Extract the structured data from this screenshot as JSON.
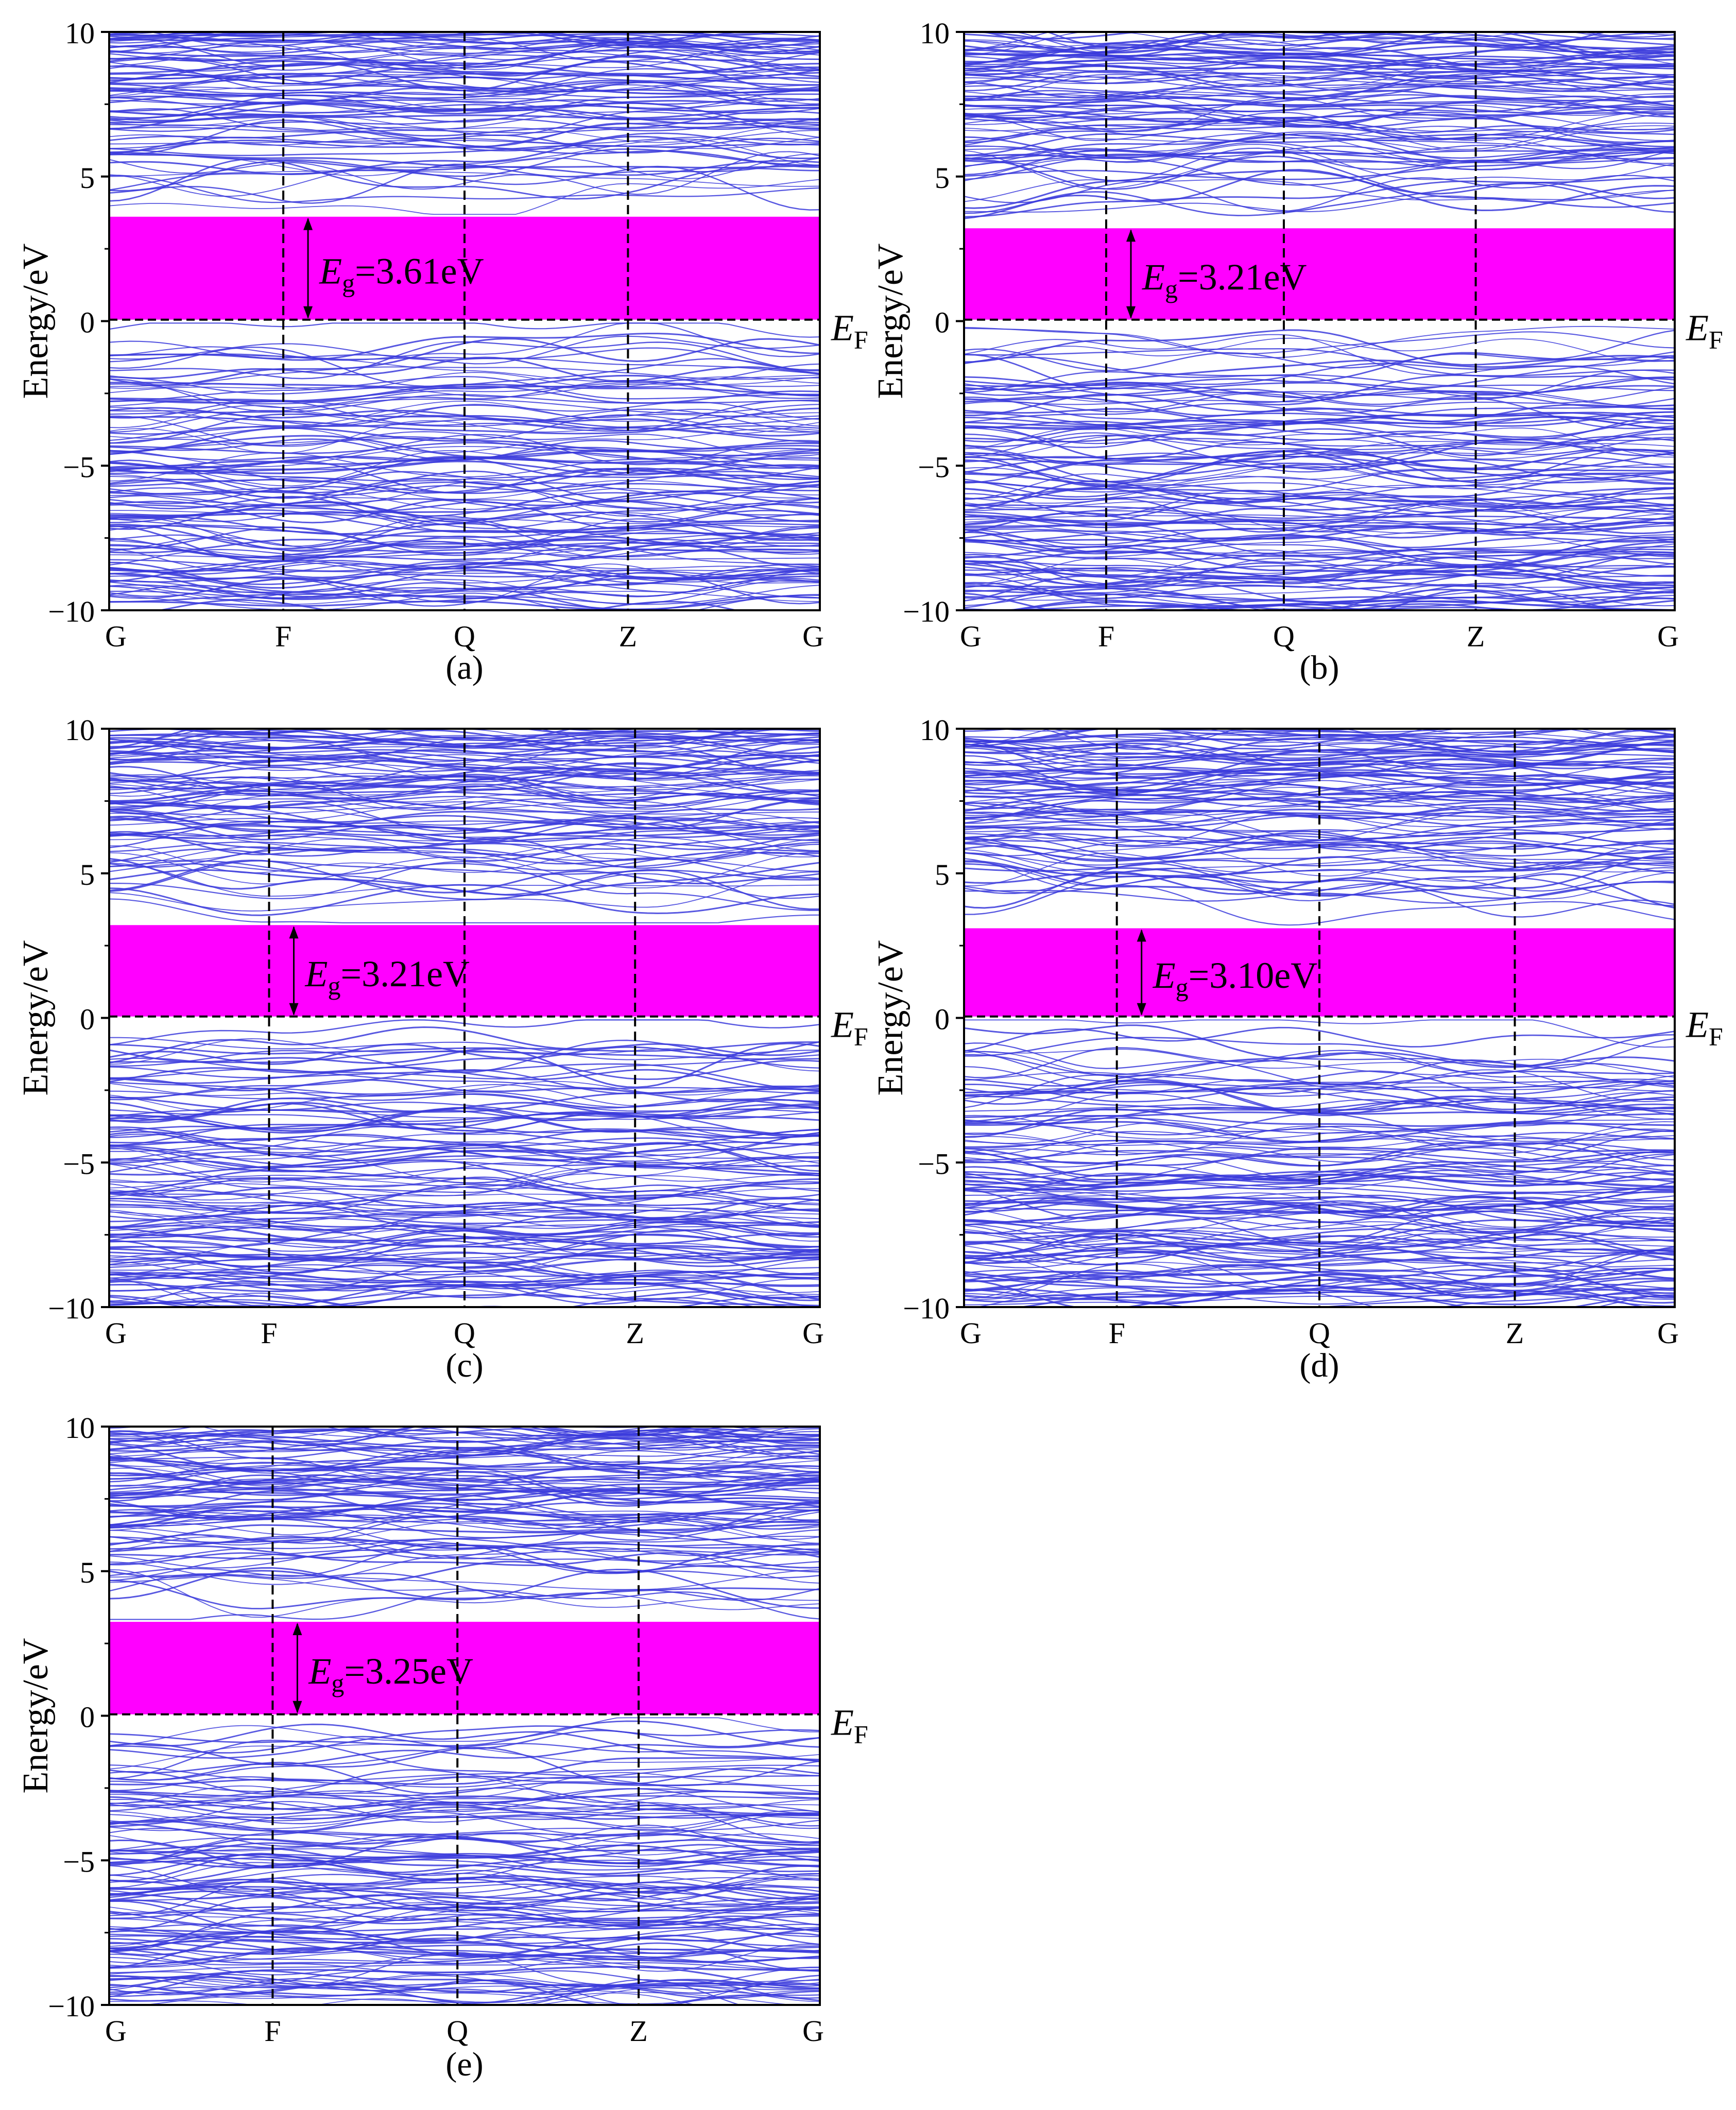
{
  "colors": {
    "band": "#3b3bdc",
    "gap": "#ff00ff",
    "axis": "#000000",
    "background": "#ffffff"
  },
  "chart_data": [
    {
      "panel_label": "(a)",
      "type": "line",
      "ylabel": "Energy/eV",
      "ylim": [
        -10,
        10
      ],
      "y_ticks": [
        "−10",
        "−5",
        "0",
        "5",
        "10"
      ],
      "k_labels": [
        "G",
        "F",
        "Q",
        "Z",
        "G"
      ],
      "k_positions": [
        0,
        0.245,
        0.5,
        0.73,
        1
      ],
      "fermi_label": {
        "main": "E",
        "sub": "F"
      },
      "gap": {
        "main": "E",
        "sub": "g",
        "value_text": "=3.61eV",
        "vbm": 0.05,
        "cbm": 3.61
      },
      "bands": {
        "seed": 11,
        "cond_start": 3.75,
        "val_start": -0.1
      }
    },
    {
      "panel_label": "(b)",
      "type": "line",
      "ylabel": "Energy/eV",
      "ylim": [
        -10,
        10
      ],
      "y_ticks": [
        "−10",
        "−5",
        "0",
        "5",
        "10"
      ],
      "k_labels": [
        "G",
        "F",
        "Q",
        "Z",
        "G"
      ],
      "k_positions": [
        0,
        0.2,
        0.45,
        0.72,
        1
      ],
      "fermi_label": {
        "main": "E",
        "sub": "F"
      },
      "gap": {
        "main": "E",
        "sub": "g",
        "value_text": "=3.21eV",
        "vbm": 0.05,
        "cbm": 3.21
      },
      "bands": {
        "seed": 23,
        "cond_start": 3.35,
        "val_start": -0.25
      }
    },
    {
      "panel_label": "(c)",
      "type": "line",
      "ylabel": "Energy/eV",
      "ylim": [
        -10,
        10
      ],
      "y_ticks": [
        "−10",
        "−5",
        "0",
        "5",
        "10"
      ],
      "k_labels": [
        "G",
        "F",
        "Q",
        "Z",
        "G"
      ],
      "k_positions": [
        0,
        0.225,
        0.5,
        0.74,
        1
      ],
      "fermi_label": {
        "main": "E",
        "sub": "F"
      },
      "gap": {
        "main": "E",
        "sub": "g",
        "value_text": "=3.21eV",
        "vbm": 0.05,
        "cbm": 3.21
      },
      "bands": {
        "seed": 37,
        "cond_start": 3.35,
        "val_start": -0.25
      }
    },
    {
      "panel_label": "(d)",
      "type": "line",
      "ylabel": "Energy/eV",
      "ylim": [
        -10,
        10
      ],
      "y_ticks": [
        "−10",
        "−5",
        "0",
        "5",
        "10"
      ],
      "k_labels": [
        "G",
        "F",
        "Q",
        "Z",
        "G"
      ],
      "k_positions": [
        0,
        0.215,
        0.5,
        0.775,
        1
      ],
      "fermi_label": {
        "main": "E",
        "sub": "F"
      },
      "gap": {
        "main": "E",
        "sub": "g",
        "value_text": "=3.10eV",
        "vbm": 0.05,
        "cbm": 3.1
      },
      "bands": {
        "seed": 41,
        "cond_start": 3.25,
        "val_start": -0.3
      }
    },
    {
      "panel_label": "(e)",
      "type": "line",
      "ylabel": "Energy/eV",
      "ylim": [
        -10,
        10
      ],
      "y_ticks": [
        "−10",
        "−5",
        "0",
        "5",
        "10"
      ],
      "k_labels": [
        "G",
        "F",
        "Q",
        "Z",
        "G"
      ],
      "k_positions": [
        0,
        0.23,
        0.49,
        0.745,
        1
      ],
      "fermi_label": {
        "main": "E",
        "sub": "F"
      },
      "gap": {
        "main": "E",
        "sub": "g",
        "value_text": "=3.25eV",
        "vbm": 0.05,
        "cbm": 3.25
      },
      "bands": {
        "seed": 53,
        "cond_start": 3.4,
        "val_start": -0.2
      }
    }
  ]
}
